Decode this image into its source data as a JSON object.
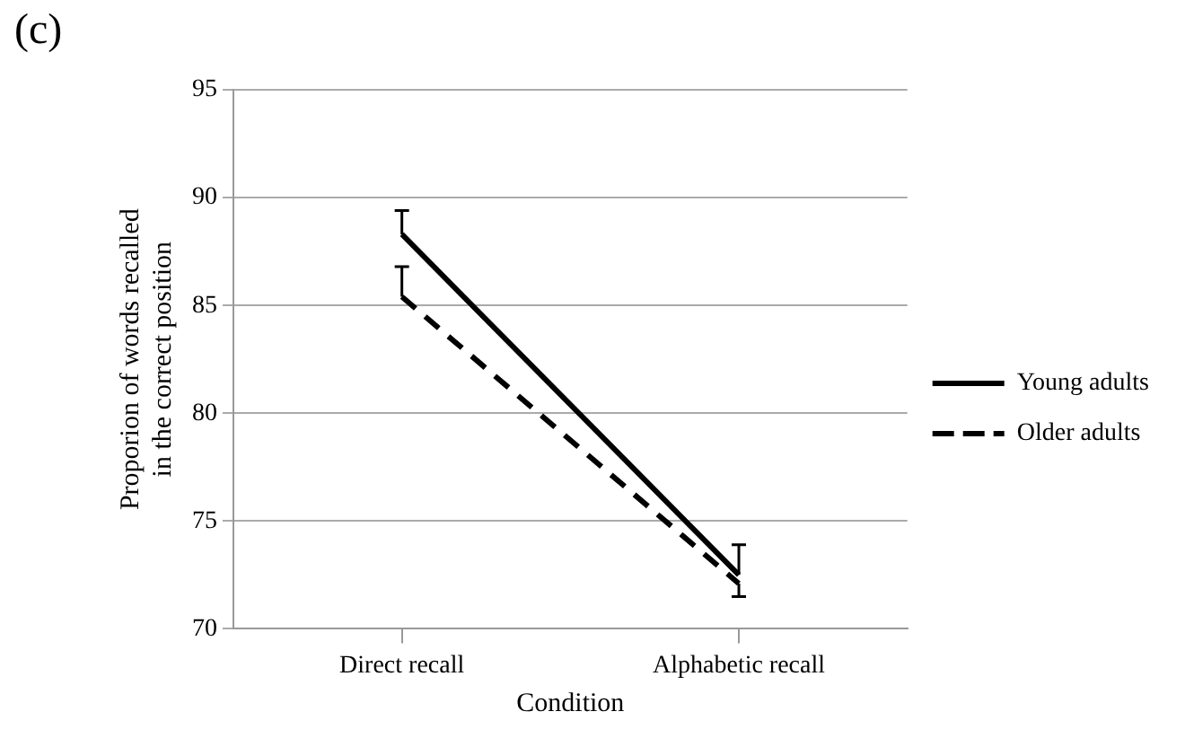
{
  "chart_data": {
    "type": "line",
    "title": "(c)",
    "xlabel": "Condition",
    "ylabel": "Proporion of words recalled in the correct position",
    "categories": [
      "Direct recall",
      "Alphabetic recall"
    ],
    "series": [
      {
        "name": "Young adults",
        "color": "#000000",
        "line_style": "solid",
        "values": [
          88.3,
          72.5
        ],
        "errors": [
          [
            88.3,
            89.4
          ],
          [
            72.5,
            73.9
          ]
        ]
      },
      {
        "name": "Older adults",
        "color": "#000000",
        "line_style": "dashed",
        "values": [
          85.4,
          72.1
        ],
        "errors": [
          [
            85.4,
            86.8
          ],
          [
            71.5,
            72.1
          ]
        ]
      }
    ],
    "ylim": [
      70,
      95
    ],
    "yticks": [
      70,
      75,
      80,
      85,
      90,
      95
    ],
    "grid": "y",
    "legend": "right",
    "marker": "none"
  }
}
